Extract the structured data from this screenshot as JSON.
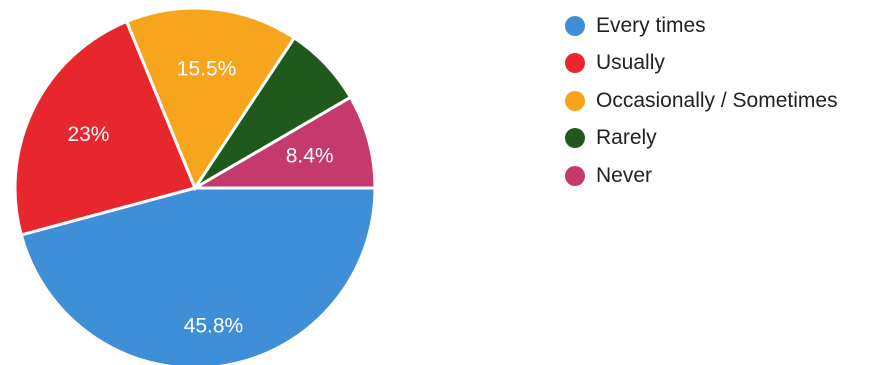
{
  "chart_data": {
    "type": "pie",
    "title": "",
    "slices": [
      {
        "label": "Every times",
        "value": 45.8,
        "display": "45.8%",
        "color": "#3f8fd8"
      },
      {
        "label": "Usually",
        "value": 23,
        "display": "23%",
        "color": "#e8262e"
      },
      {
        "label": "Occasionally / Sometimes",
        "value": 15.5,
        "display": "15.5%",
        "color": "#f6a51c"
      },
      {
        "label": "Rarely",
        "value": 7.3,
        "display": "",
        "color": "#1f5a1c"
      },
      {
        "label": "Never",
        "value": 8.4,
        "display": "8.4%",
        "color": "#c43a6c"
      }
    ],
    "legend_placement": "right"
  }
}
